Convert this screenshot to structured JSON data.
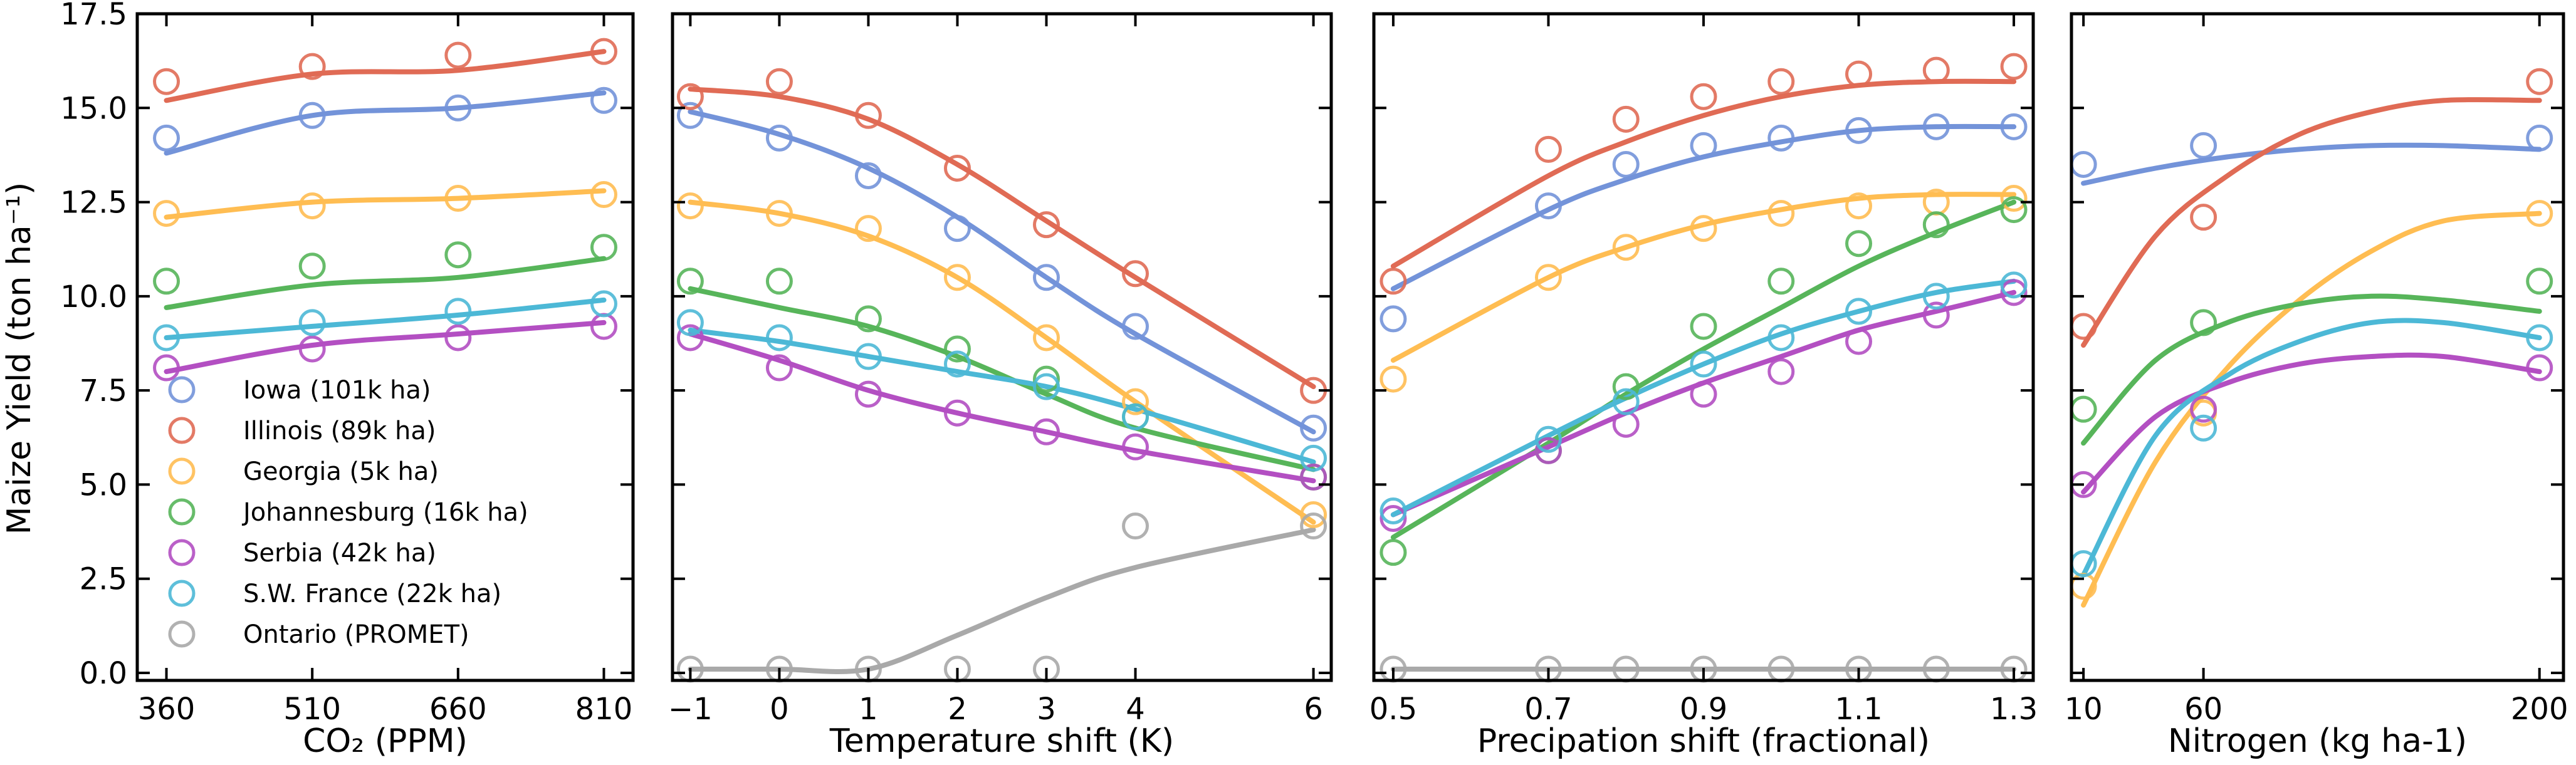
{
  "chart_data": {
    "type": "scatter",
    "ylabel": "Maize Yield (ton ha⁻¹)",
    "ylim": [
      -0.2,
      17.5
    ],
    "yticks": [
      0.0,
      2.5,
      5.0,
      7.5,
      10.0,
      12.5,
      15.0,
      17.5
    ],
    "ytick_labels": [
      "0.0",
      "2.5",
      "5.0",
      "7.5",
      "10.0",
      "12.5",
      "15.0",
      "17.5"
    ],
    "grid": false,
    "legend_position": "lower-left",
    "series": [
      {
        "key": "iowa",
        "name": "Iowa (101k ha)",
        "color": "#7393d9"
      },
      {
        "key": "illinois",
        "name": "Illinois (89k ha)",
        "color": "#e06b55"
      },
      {
        "key": "georgia",
        "name": "Georgia (5k ha)",
        "color": "#ffbd52"
      },
      {
        "key": "johannesburg",
        "name": "Johannesburg (16k ha)",
        "color": "#57b55a"
      },
      {
        "key": "serbia",
        "name": "Serbia (42k ha)",
        "color": "#b34fc2"
      },
      {
        "key": "france",
        "name": "S.W. France (22k ha)",
        "color": "#4cb8d6"
      },
      {
        "key": "ontario",
        "name": "Ontario (PROMET)",
        "color": "#a9a9a9"
      }
    ],
    "panels": [
      {
        "xlabel": "CO₂ (PPM)",
        "x": [
          360,
          510,
          660,
          810
        ],
        "xlim": [
          330,
          840
        ],
        "xticks": [
          360,
          510,
          660,
          810
        ],
        "xtick_labels": [
          "360",
          "510",
          "660",
          "810"
        ],
        "points": {
          "iowa": [
            14.2,
            14.8,
            15.0,
            15.2
          ],
          "illinois": [
            15.7,
            16.1,
            16.4,
            16.5
          ],
          "georgia": [
            12.2,
            12.4,
            12.6,
            12.7
          ],
          "johannesburg": [
            10.4,
            10.8,
            11.1,
            11.3
          ],
          "serbia": [
            8.1,
            8.6,
            8.9,
            9.2
          ],
          "france": [
            8.9,
            9.3,
            9.6,
            9.8
          ]
        },
        "fits": {
          "iowa": [
            13.8,
            14.8,
            15.0,
            15.4
          ],
          "illinois": [
            15.2,
            15.9,
            16.0,
            16.5
          ],
          "georgia": [
            12.1,
            12.5,
            12.6,
            12.8
          ],
          "johannesburg": [
            9.7,
            10.3,
            10.5,
            11.0
          ],
          "serbia": [
            8.0,
            8.7,
            9.0,
            9.3
          ],
          "france": [
            8.9,
            9.2,
            9.5,
            9.9
          ]
        }
      },
      {
        "xlabel": "Temperature shift (K)",
        "x": [
          -1,
          0,
          1,
          2,
          3,
          4,
          6
        ],
        "xlim": [
          -1.2,
          6.2
        ],
        "xticks": [
          -1,
          0,
          1,
          2,
          3,
          4,
          6
        ],
        "xtick_labels": [
          "−1",
          "0",
          "1",
          "2",
          "3",
          "4",
          "6"
        ],
        "points": {
          "iowa": [
            14.8,
            14.2,
            13.2,
            11.8,
            10.5,
            9.2,
            6.5
          ],
          "illinois": [
            15.3,
            15.7,
            14.8,
            13.4,
            11.9,
            10.6,
            7.5
          ],
          "georgia": [
            12.4,
            12.2,
            11.8,
            10.5,
            8.9,
            7.2,
            4.2
          ],
          "johannesburg": [
            10.4,
            10.4,
            9.4,
            8.6,
            7.8,
            6.8,
            5.2
          ],
          "serbia": [
            8.9,
            8.1,
            7.4,
            6.9,
            6.4,
            6.0,
            5.2
          ],
          "france": [
            9.3,
            8.9,
            8.4,
            8.2,
            7.6,
            6.8,
            5.7
          ],
          "ontario": [
            0.1,
            0.1,
            0.1,
            0.1,
            0.1,
            3.9,
            3.9
          ]
        },
        "fits": {
          "iowa": [
            14.9,
            14.3,
            13.4,
            12.1,
            10.5,
            9.0,
            6.4
          ],
          "illinois": [
            15.5,
            15.3,
            14.7,
            13.5,
            12.0,
            10.5,
            7.6
          ],
          "georgia": [
            12.5,
            12.2,
            11.6,
            10.5,
            8.9,
            7.2,
            4.0
          ],
          "johannesburg": [
            10.2,
            9.7,
            9.2,
            8.4,
            7.4,
            6.5,
            5.4
          ],
          "serbia": [
            9.0,
            8.3,
            7.5,
            6.9,
            6.4,
            5.9,
            5.1
          ],
          "france": [
            9.1,
            8.8,
            8.4,
            8.0,
            7.6,
            7.0,
            5.6
          ],
          "ontario": [
            0.1,
            0.1,
            0.1,
            1.0,
            2.0,
            2.8,
            3.8
          ]
        }
      },
      {
        "xlabel": "Precipation shift (fractional)",
        "x": [
          0.5,
          0.7,
          0.8,
          0.9,
          1.0,
          1.1,
          1.2,
          1.3
        ],
        "xlim": [
          0.475,
          1.325
        ],
        "xticks": [
          0.5,
          0.7,
          0.9,
          1.1,
          1.3
        ],
        "xtick_labels": [
          "0.5",
          "0.7",
          "0.9",
          "1.1",
          "1.3"
        ],
        "points": {
          "iowa": [
            9.4,
            12.4,
            13.5,
            14.0,
            14.2,
            14.4,
            14.5,
            14.5
          ],
          "illinois": [
            10.4,
            13.9,
            14.7,
            15.3,
            15.7,
            15.9,
            16.0,
            16.1
          ],
          "georgia": [
            7.8,
            10.5,
            11.3,
            11.8,
            12.2,
            12.4,
            12.5,
            12.6
          ],
          "johannesburg": [
            3.2,
            5.9,
            7.6,
            9.2,
            10.4,
            11.4,
            11.9,
            12.3
          ],
          "serbia": [
            4.1,
            5.9,
            6.6,
            7.4,
            8.0,
            8.8,
            9.5,
            10.1
          ],
          "france": [
            4.3,
            6.2,
            7.2,
            8.2,
            8.9,
            9.6,
            10.0,
            10.3
          ],
          "ontario": [
            0.1,
            0.1,
            0.1,
            0.1,
            0.1,
            0.1,
            0.1,
            0.1
          ]
        },
        "fits": {
          "iowa": [
            10.2,
            12.3,
            13.1,
            13.7,
            14.1,
            14.4,
            14.5,
            14.5
          ],
          "illinois": [
            10.8,
            13.2,
            14.1,
            14.8,
            15.3,
            15.6,
            15.7,
            15.7
          ],
          "georgia": [
            8.3,
            10.5,
            11.3,
            11.9,
            12.3,
            12.6,
            12.7,
            12.7
          ],
          "johannesburg": [
            3.6,
            6.1,
            7.4,
            8.6,
            9.7,
            10.8,
            11.7,
            12.5
          ],
          "serbia": [
            4.2,
            6.0,
            6.9,
            7.7,
            8.4,
            9.1,
            9.6,
            10.1
          ],
          "france": [
            4.2,
            6.3,
            7.3,
            8.2,
            9.0,
            9.6,
            10.1,
            10.4
          ],
          "ontario": [
            0.1,
            0.1,
            0.1,
            0.1,
            0.1,
            0.1,
            0.1,
            0.1
          ]
        }
      },
      {
        "xlabel": "Nitrogen (kg ha-1)",
        "x": [
          10,
          60,
          200
        ],
        "xlim": [
          5,
          210
        ],
        "xticks": [
          10,
          60,
          200
        ],
        "xtick_labels": [
          "10",
          "60",
          "200"
        ],
        "points": {
          "iowa": [
            13.5,
            14.0,
            14.2
          ],
          "illinois": [
            9.2,
            12.1,
            15.7
          ],
          "georgia": [
            2.3,
            6.9,
            12.2
          ],
          "johannesburg": [
            7.0,
            9.3,
            10.4
          ],
          "serbia": [
            5.0,
            7.0,
            8.1
          ],
          "france": [
            2.9,
            6.5,
            8.9
          ]
        },
        "fits": {
          "iowa": [
            13.0,
            13.4,
            13.7,
            13.9,
            14.0,
            14.0,
            13.9
          ],
          "illinois": [
            8.7,
            11.6,
            13.2,
            14.3,
            14.9,
            15.2,
            15.2
          ],
          "georgia": [
            1.8,
            5.6,
            8.1,
            9.9,
            11.2,
            12.0,
            12.2
          ],
          "johannesburg": [
            6.1,
            8.3,
            9.3,
            9.8,
            10.0,
            9.9,
            9.6
          ],
          "serbia": [
            4.8,
            6.8,
            7.7,
            8.2,
            8.4,
            8.4,
            8.0
          ],
          "france": [
            2.6,
            6.3,
            7.9,
            8.8,
            9.3,
            9.3,
            8.9
          ]
        },
        "fit_x": [
          10,
          40,
          70,
          100,
          130,
          160,
          200
        ]
      }
    ]
  }
}
